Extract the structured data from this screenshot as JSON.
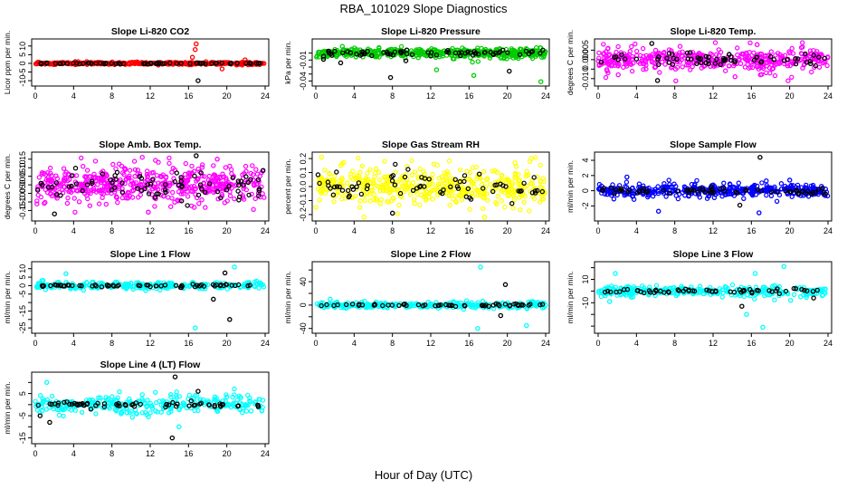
{
  "page": {
    "title": "RBA_101029  Slope Diagnostics",
    "xlabel": "Hour of Day (UTC)"
  },
  "chart_data": [
    {
      "type": "scatter",
      "title": "Slope Li-820 CO2",
      "ylabel": "Licor ppm per min.",
      "xlim": [
        0,
        24
      ],
      "ylim": [
        -11,
        12
      ],
      "xticks": [
        0,
        4,
        8,
        12,
        16,
        20,
        24
      ],
      "yticks": [
        -10,
        -5,
        0,
        5,
        10
      ],
      "ytick_labels": [
        "-10",
        "-5",
        "0",
        "5",
        "10"
      ],
      "color": "#ff0000",
      "spread": 0.4,
      "tight": 0.15,
      "nbg": 420,
      "nfg": 70,
      "outliers": [
        [
          16.8,
          11.2
        ],
        [
          16.7,
          8.0
        ],
        [
          17.0,
          -10.0
        ],
        [
          19.5,
          -3.2
        ],
        [
          21.9,
          2.0
        ],
        [
          16.4,
          3.5
        ],
        [
          21.0,
          -0.9
        ]
      ]
    },
    {
      "type": "scatter",
      "title": "Slope Li-820 Pressure",
      "ylabel": "kPa per min.",
      "xlim": [
        0,
        24
      ],
      "ylim": [
        -0.042,
        0.015
      ],
      "xticks": [
        0,
        4,
        8,
        12,
        16,
        20,
        24
      ],
      "yticks": [
        -0.04,
        -0.03,
        -0.02,
        -0.01,
        0
      ],
      "ytick_labels": [
        "-0.04",
        "",
        "",
        "-0.01",
        ""
      ],
      "color": "#00cc00",
      "center": 0.0,
      "spread": 0.004,
      "tight": 0.002,
      "nbg": 450,
      "nfg": 70,
      "outliers": [
        [
          0.8,
          -0.009
        ],
        [
          7.8,
          -0.035
        ],
        [
          12.6,
          -0.024
        ],
        [
          16.5,
          -0.032
        ],
        [
          20.2,
          -0.026
        ],
        [
          23.5,
          -0.041
        ],
        [
          2.6,
          -0.014
        ],
        [
          9.4,
          -0.011
        ]
      ]
    },
    {
      "type": "scatter",
      "title": "Slope Li-820 Temp.",
      "ylabel": "degrees C per min.",
      "xlim": [
        0,
        24
      ],
      "ylim": [
        -0.012,
        0.009
      ],
      "xticks": [
        0,
        4,
        8,
        12,
        16,
        20,
        24
      ],
      "yticks": [
        -0.01,
        -0.005,
        0,
        0.005
      ],
      "ytick_labels": [
        "-0.010",
        "",
        "0.000",
        "0.005"
      ],
      "color": "#ff00ff",
      "center": 0.0,
      "spread": 0.0035,
      "tight": 0.0018,
      "nbg": 420,
      "nfg": 65,
      "outliers": [
        [
          5.6,
          0.0085
        ],
        [
          6.2,
          -0.011
        ],
        [
          2.1,
          -0.008
        ],
        [
          14.3,
          -0.009
        ],
        [
          16.6,
          0.0079
        ],
        [
          23.1,
          -0.004
        ]
      ]
    },
    {
      "type": "scatter",
      "title": "Slope Amb. Box Temp.",
      "ylabel": "degrees C per min.",
      "xlim": [
        0,
        24
      ],
      "ylim": [
        -0.19,
        0.17
      ],
      "xticks": [
        0,
        4,
        8,
        12,
        16,
        20,
        24
      ],
      "yticks": [
        -0.15,
        -0.1,
        -0.05,
        0,
        0.05,
        0.1,
        0.15
      ],
      "ytick_labels": [
        "-0.15",
        "-0.10",
        "-0.05",
        "0.00",
        "0.05",
        "0.10",
        "0.15"
      ],
      "color": "#ff00ff",
      "center": 0.0,
      "spread": 0.06,
      "tight": 0.04,
      "nbg": 520,
      "nfg": 80,
      "outliers": [
        [
          16.8,
          0.17
        ],
        [
          2.0,
          -0.17
        ],
        [
          11.8,
          -0.16
        ],
        [
          19.0,
          0.15
        ]
      ]
    },
    {
      "type": "scatter",
      "title": "Slope Gas Stream RH",
      "ylabel": "percent per min.",
      "xlim": [
        0,
        24
      ],
      "ylim": [
        -0.22,
        0.22
      ],
      "xticks": [
        0,
        4,
        8,
        12,
        16,
        20,
        24
      ],
      "yticks": [
        -0.2,
        -0.1,
        0,
        0.1,
        0.2
      ],
      "ytick_labels": [
        "-0.2",
        "-0.1",
        "0.0",
        "0.1",
        "0.2"
      ],
      "color": "#ffff00",
      "center": 0.0,
      "spread": 0.08,
      "tight": 0.05,
      "nbg": 480,
      "nfg": 70,
      "outliers": [
        [
          0.6,
          0.21
        ],
        [
          17.6,
          -0.22
        ],
        [
          8.0,
          -0.19
        ],
        [
          20.8,
          0.17
        ]
      ]
    },
    {
      "type": "scatter",
      "title": "Slope Sample Flow",
      "ylabel": "ml/min per min.",
      "xlim": [
        0,
        24
      ],
      "ylim": [
        -3.5,
        4.6
      ],
      "xticks": [
        0,
        4,
        8,
        12,
        16,
        20,
        24
      ],
      "yticks": [
        -2,
        0,
        2,
        4
      ],
      "ytick_labels": [
        "-2",
        "0",
        "2",
        "4"
      ],
      "color": "#0000ff",
      "center": 0.0,
      "spread": 0.5,
      "tight": 0.2,
      "nbg": 420,
      "nfg": 70,
      "outliers": [
        [
          16.9,
          4.4
        ],
        [
          16.8,
          -2.9
        ],
        [
          6.3,
          -2.7
        ],
        [
          3.0,
          1.8
        ],
        [
          14.8,
          -1.9
        ],
        [
          20.0,
          1.4
        ]
      ]
    },
    {
      "type": "scatter",
      "title": "Slope Line 1 Flow",
      "ylabel": "ml/min per min.",
      "xlim": [
        0,
        24
      ],
      "ylim": [
        -26,
        12
      ],
      "xticks": [
        0,
        4,
        8,
        12,
        16,
        20,
        24
      ],
      "yticks": [
        -25,
        -20,
        -15,
        -10,
        -5,
        0,
        5,
        10
      ],
      "ytick_labels": [
        "-25",
        "",
        "-15",
        "",
        "-5",
        "0",
        "5",
        "10"
      ],
      "color": "#00ffff",
      "center": 0.0,
      "spread": 1.2,
      "tight": 0.4,
      "nbg": 300,
      "nfg": 60,
      "outliers": [
        [
          16.7,
          -25.0
        ],
        [
          20.3,
          -20.0
        ],
        [
          20.8,
          11.0
        ],
        [
          19.8,
          7.5
        ],
        [
          3.2,
          7.0
        ],
        [
          18.6,
          -8.0
        ]
      ]
    },
    {
      "type": "scatter",
      "title": "Slope Line 2 Flow",
      "ylabel": "ml/min per min.",
      "xlim": [
        0,
        24
      ],
      "ylim": [
        -42,
        68
      ],
      "xticks": [
        0,
        4,
        8,
        12,
        16,
        20,
        24
      ],
      "yticks": [
        -40,
        -20,
        0,
        20,
        40,
        60
      ],
      "ytick_labels": [
        "-40",
        "",
        "0",
        "",
        "40",
        ""
      ],
      "color": "#00ffff",
      "center": 0.0,
      "spread": 3.0,
      "tight": 1.0,
      "nbg": 300,
      "nfg": 60,
      "outliers": [
        [
          17.2,
          65.0
        ],
        [
          16.9,
          -40.0
        ],
        [
          19.3,
          -18.0
        ],
        [
          22.0,
          -35.0
        ],
        [
          19.8,
          35.0
        ],
        [
          1.5,
          10.0
        ]
      ]
    },
    {
      "type": "scatter",
      "title": "Slope Line 3 Flow",
      "ylabel": "ml/min per min.",
      "xlim": [
        0,
        24
      ],
      "ylim": [
        -33,
        22
      ],
      "xticks": [
        0,
        4,
        8,
        12,
        16,
        20,
        24
      ],
      "yticks": [
        -30,
        -20,
        -10,
        0,
        10,
        20
      ],
      "ytick_labels": [
        "",
        "",
        "-10",
        "",
        "10",
        ""
      ],
      "color": "#00ffff",
      "center": 0.0,
      "spread": 2.5,
      "tight": 1.0,
      "nbg": 320,
      "nfg": 60,
      "outliers": [
        [
          19.4,
          21.0
        ],
        [
          16.4,
          15.0
        ],
        [
          1.8,
          15.0
        ],
        [
          1.2,
          -9.0
        ],
        [
          15.5,
          -20.0
        ],
        [
          15.0,
          -13.0
        ],
        [
          17.2,
          -31.0
        ],
        [
          20.1,
          -8.0
        ],
        [
          22.5,
          -6.0
        ]
      ]
    },
    {
      "type": "scatter",
      "title": "Slope Line 4 (LT) Flow",
      "ylabel": "ml/min per min.",
      "xlim": [
        0,
        24
      ],
      "ylim": [
        -16,
        13
      ],
      "xticks": [
        0,
        4,
        8,
        12,
        16,
        20,
        24
      ],
      "yticks": [
        -15,
        -10,
        -5,
        0,
        5,
        10
      ],
      "ytick_labels": [
        "-15",
        "",
        "-5",
        "",
        "5",
        ""
      ],
      "color": "#00ffff",
      "center": 0.0,
      "spread": 2.5,
      "tight": 0.6,
      "nbg": 300,
      "nfg": 65,
      "outliers": [
        [
          1.2,
          10.0
        ],
        [
          1.5,
          -8.0
        ],
        [
          14.6,
          12.5
        ],
        [
          14.3,
          -15.0
        ],
        [
          15.0,
          -10.0
        ],
        [
          17.0,
          6.0
        ],
        [
          20.0,
          3.5
        ],
        [
          0.5,
          -5.0
        ]
      ]
    }
  ]
}
